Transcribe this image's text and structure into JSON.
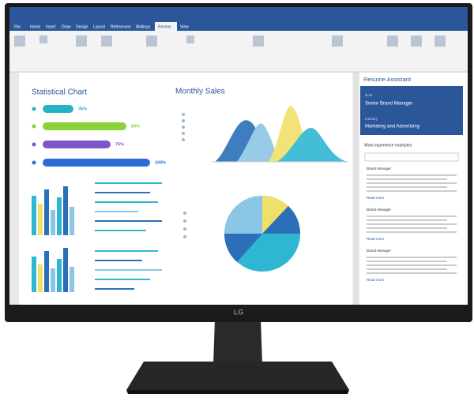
{
  "ribbon": {
    "tabs": [
      "File",
      "Home",
      "Insert",
      "Draw",
      "Design",
      "Layout",
      "References",
      "Mailings",
      "Review",
      "View"
    ]
  },
  "document": {
    "left_title": "Statistical Chart",
    "bar_labels": [
      "35%",
      "80%",
      "75%",
      "100%"
    ],
    "right_title": "Monthly Sales"
  },
  "pane": {
    "title": "Resume Assistant",
    "role_label": "Role",
    "role": "Senior Brand Manager",
    "industry_label": "Industry",
    "industry": "Marketing and Advertising",
    "section": "Work experience examples",
    "examples": [
      {
        "title": "Brand Manager",
        "link": "Read more"
      },
      {
        "title": "Brand Manager",
        "link": "Read more"
      },
      {
        "title": "Brand Manager",
        "link": "Read more"
      }
    ]
  },
  "monitor": {
    "logo": "LG"
  }
}
